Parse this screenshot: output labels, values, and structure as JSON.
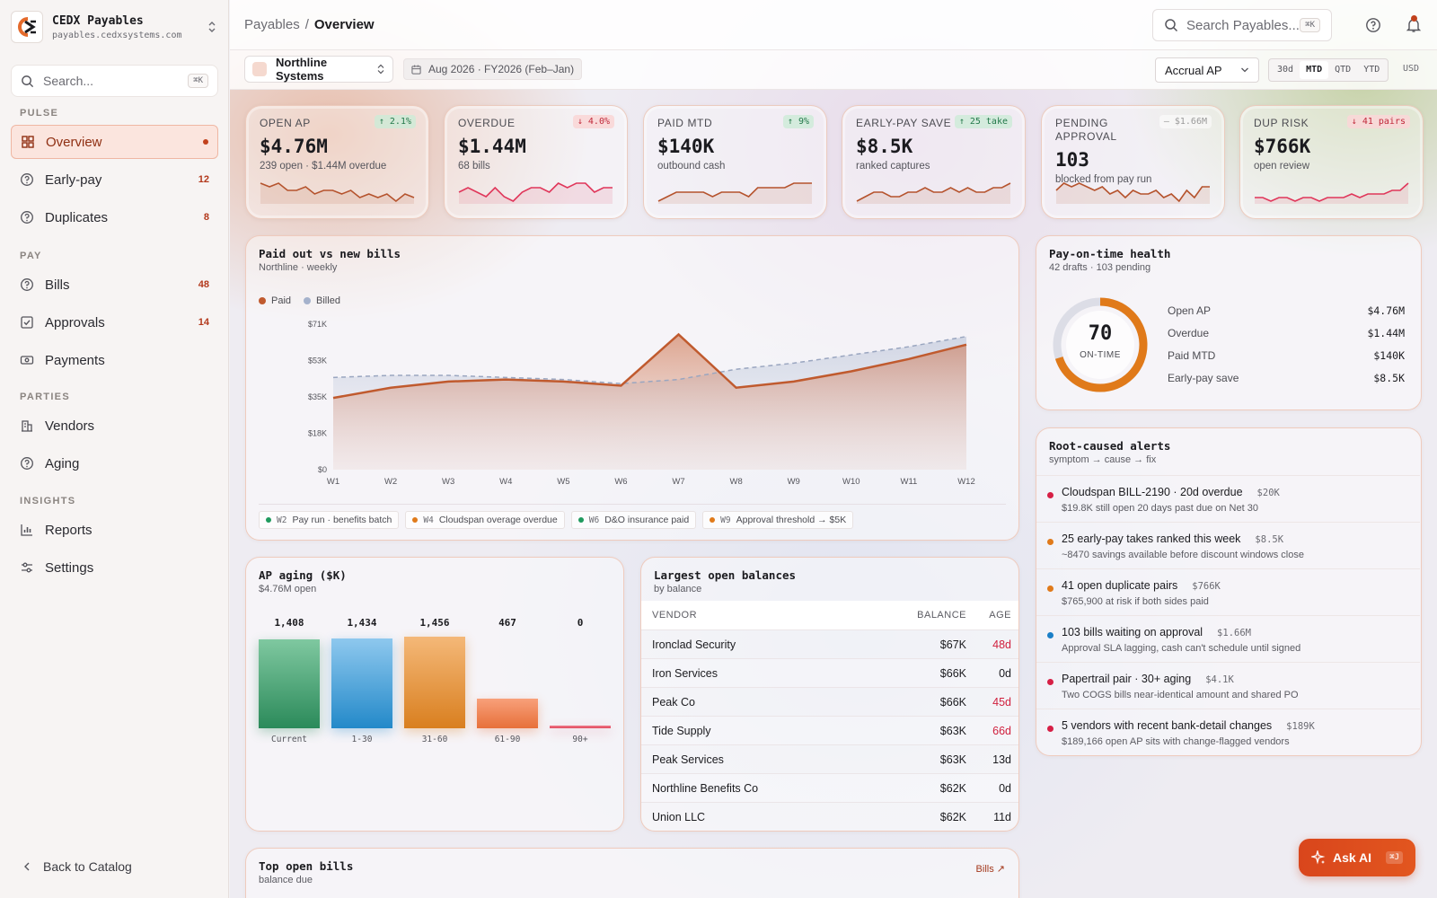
{
  "brand": {
    "name": "CEDX Payables",
    "domain": "payables.cedxsystems.com"
  },
  "sidebar": {
    "search_placeholder": "Search...",
    "search_shortcut": "⌘K",
    "sections": {
      "pulse": "PULSE",
      "pay": "PAY",
      "parties": "PARTIES",
      "insights": "INSIGHTS"
    },
    "items": [
      {
        "label": "Overview",
        "icon": "grid-icon",
        "active": true
      },
      {
        "label": "Early-pay",
        "icon": "help-circle-icon",
        "count": "12"
      },
      {
        "label": "Duplicates",
        "icon": "help-circle-icon",
        "count": "8"
      },
      {
        "label": "Bills",
        "icon": "help-circle-icon",
        "count": "48"
      },
      {
        "label": "Approvals",
        "icon": "check-square-icon",
        "count": "14"
      },
      {
        "label": "Payments",
        "icon": "banknote-icon"
      },
      {
        "label": "Vendors",
        "icon": "building-icon"
      },
      {
        "label": "Aging",
        "icon": "help-circle-icon"
      },
      {
        "label": "Reports",
        "icon": "bar-chart-icon"
      },
      {
        "label": "Settings",
        "icon": "sliders-icon"
      }
    ],
    "back_label": "Back to Catalog"
  },
  "header": {
    "breadcrumb_root": "Payables",
    "breadcrumb_sep": "/",
    "breadcrumb_current": "Overview",
    "search_placeholder": "Search Payables...",
    "search_shortcut": "⌘K"
  },
  "filters": {
    "entity": "Northline Systems",
    "period": "Aug 2026 · FY2026 (Feb–Jan)",
    "basis": "Accrual AP",
    "ranges": [
      "30d",
      "MTD",
      "QTD",
      "YTD"
    ],
    "active_range": "MTD",
    "currency": "USD"
  },
  "kpis": [
    {
      "label": "OPEN AP",
      "delta": "↑ 2.1%",
      "trend": "up",
      "value": "$4.76M",
      "sub": "239 open · $1.44M overdue",
      "color": "#b5532d",
      "spark": [
        6,
        5,
        6,
        4,
        4,
        5,
        3,
        4,
        4,
        3,
        4,
        2,
        3,
        2,
        3,
        1,
        3,
        2
      ]
    },
    {
      "label": "OVERDUE",
      "delta": "↓ 4.0%",
      "trend": "down",
      "value": "$1.44M",
      "sub": "68 bills",
      "color": "#e0365a",
      "spark": [
        3,
        4,
        3,
        2,
        4,
        2,
        1,
        3,
        4,
        4,
        3,
        5,
        4,
        5,
        5,
        3,
        4,
        4
      ]
    },
    {
      "label": "PAID MTD",
      "delta": "↑ 9%",
      "trend": "up",
      "value": "$140K",
      "sub": "outbound cash",
      "color": "#b5532d",
      "spark": [
        1,
        2,
        3,
        3,
        3,
        3,
        2,
        3,
        3,
        3,
        2,
        4,
        4,
        4,
        4,
        5,
        5,
        5
      ]
    },
    {
      "label": "EARLY-PAY SAVE",
      "delta": "↑ 25 take",
      "trend": "up",
      "value": "$8.5K",
      "sub": "ranked captures",
      "color": "#b5532d",
      "spark": [
        2,
        3,
        4,
        4,
        3,
        3,
        4,
        4,
        5,
        4,
        4,
        5,
        4,
        5,
        4,
        4,
        5,
        5,
        6
      ]
    },
    {
      "label": "PENDING APPROVAL",
      "delta": "– $1.66M",
      "trend": "flat",
      "value": "103",
      "sub": "blocked from pay run",
      "color": "#b5532d",
      "spark": [
        4,
        6,
        5,
        6,
        5,
        4,
        5,
        3,
        4,
        2,
        4,
        3,
        3,
        4,
        2,
        3,
        1,
        4,
        2,
        5,
        5
      ]
    },
    {
      "label": "DUP RISK",
      "delta": "↓ 41 pairs",
      "trend": "down",
      "value": "$766K",
      "sub": "open review",
      "color": "#e0365a",
      "spark": [
        3,
        3,
        2,
        3,
        3,
        2,
        3,
        3,
        2,
        3,
        3,
        3,
        4,
        3,
        4,
        4,
        4,
        5,
        5,
        7
      ]
    }
  ],
  "paid_vs_billed": {
    "title": "Paid out vs new bills",
    "subtitle": "Northline · weekly",
    "legend": [
      "Paid",
      "Billed"
    ],
    "annotations": [
      {
        "week": "W2",
        "text": "Pay run · benefits batch",
        "color": "#1f9a5e"
      },
      {
        "week": "W4",
        "text": "Cloudspan overage overdue",
        "color": "#e07a1a"
      },
      {
        "week": "W6",
        "text": "D&O insurance paid",
        "color": "#1f9a5e"
      },
      {
        "week": "W9",
        "text": "Approval threshold → $5K",
        "color": "#e07a1a"
      }
    ]
  },
  "chart_data": {
    "type": "area",
    "x": [
      "W1",
      "W2",
      "W3",
      "W4",
      "W5",
      "W6",
      "W7",
      "W8",
      "W9",
      "W10",
      "W11",
      "W12"
    ],
    "series": [
      {
        "name": "Paid",
        "values": [
          35,
          40,
          43,
          44,
          43,
          41,
          66,
          40,
          43,
          48,
          54,
          61
        ],
        "color": "#c05a2e"
      },
      {
        "name": "Billed",
        "values": [
          45,
          46,
          46,
          45,
          44,
          42,
          44,
          49,
          52,
          56,
          60,
          65
        ],
        "color": "#8fa0c0"
      }
    ],
    "yticks": [
      "$0",
      "$18K",
      "$35K",
      "$53K",
      "$71K"
    ],
    "ylim": [
      0,
      71
    ],
    "grid": false,
    "legend": "top-left"
  },
  "health": {
    "title": "Pay-on-time health",
    "subtitle": "42 drafts · 103 pending",
    "score": "70",
    "score_pct": 70,
    "score_label": "ON-TIME",
    "rows": [
      {
        "k": "Open AP",
        "v": "$4.76M"
      },
      {
        "k": "Overdue",
        "v": "$1.44M"
      },
      {
        "k": "Paid MTD",
        "v": "$140K"
      },
      {
        "k": "Early-pay save",
        "v": "$8.5K"
      }
    ]
  },
  "alerts": {
    "title": "Root-caused alerts",
    "subtitle": "symptom → cause → fix",
    "items": [
      {
        "title": "Cloudspan BILL-2190 · 20d overdue",
        "amount": "$20K",
        "desc": "$19.8K still open 20 days past due on Net 30",
        "color": "#d61f45"
      },
      {
        "title": "25 early-pay takes ranked this week",
        "amount": "$8.5K",
        "desc": "~8470 savings available before discount windows close",
        "color": "#e07a1a"
      },
      {
        "title": "41 open duplicate pairs",
        "amount": "$766K",
        "desc": "$765,900 at risk if both sides paid",
        "color": "#e07a1a"
      },
      {
        "title": "103 bills waiting on approval",
        "amount": "$1.66M",
        "desc": "Approval SLA lagging, cash can't schedule until signed",
        "color": "#1a7fc7"
      },
      {
        "title": "Papertrail pair · 30+ aging",
        "amount": "$4.1K",
        "desc": "Two COGS bills near-identical amount and shared PO",
        "color": "#d61f45"
      },
      {
        "title": "5 vendors with recent bank-detail changes",
        "amount": "$189K",
        "desc": "$189,166 open AP sits with change-flagged vendors",
        "color": "#d61f45"
      }
    ]
  },
  "aging": {
    "title": "AP aging ($K)",
    "subtitle": "$4.76M open",
    "buckets": [
      {
        "label": "Current",
        "value": 1408,
        "display": "1,408",
        "top": "#7fc8a0",
        "bottom": "#2b8a5a"
      },
      {
        "label": "1-30",
        "value": 1434,
        "display": "1,434",
        "top": "#8ec8ee",
        "bottom": "#2389c9"
      },
      {
        "label": "31-60",
        "value": 1456,
        "display": "1,456",
        "top": "#f4b878",
        "bottom": "#d97f1f"
      },
      {
        "label": "61-90",
        "value": 467,
        "display": "467",
        "top": "#f8a07a",
        "bottom": "#e7703a"
      },
      {
        "label": "90+",
        "value": 0,
        "display": "0",
        "top": "#f07b8a",
        "bottom": "#e04a5e"
      }
    ]
  },
  "balances": {
    "title": "Largest open balances",
    "subtitle": "by balance",
    "headers": {
      "vendor": "VENDOR",
      "balance": "BALANCE",
      "age": "AGE"
    },
    "rows": [
      {
        "vendor": "Ironclad Security",
        "balance": "$67K",
        "age": "48d",
        "late": true
      },
      {
        "vendor": "Iron Services",
        "balance": "$66K",
        "age": "0d",
        "late": false
      },
      {
        "vendor": "Peak Co",
        "balance": "$66K",
        "age": "45d",
        "late": true
      },
      {
        "vendor": "Tide Supply",
        "balance": "$63K",
        "age": "66d",
        "late": true
      },
      {
        "vendor": "Peak Services",
        "balance": "$63K",
        "age": "13d",
        "late": false
      },
      {
        "vendor": "Northline Benefits Co",
        "balance": "$62K",
        "age": "0d",
        "late": false
      },
      {
        "vendor": "Union LLC",
        "balance": "$62K",
        "age": "11d",
        "late": false
      }
    ]
  },
  "top_bills": {
    "title": "Top open bills",
    "subtitle": "balance due",
    "link": "Bills ↗"
  },
  "ask_ai": {
    "label": "Ask AI",
    "shortcut": "⌘J"
  }
}
